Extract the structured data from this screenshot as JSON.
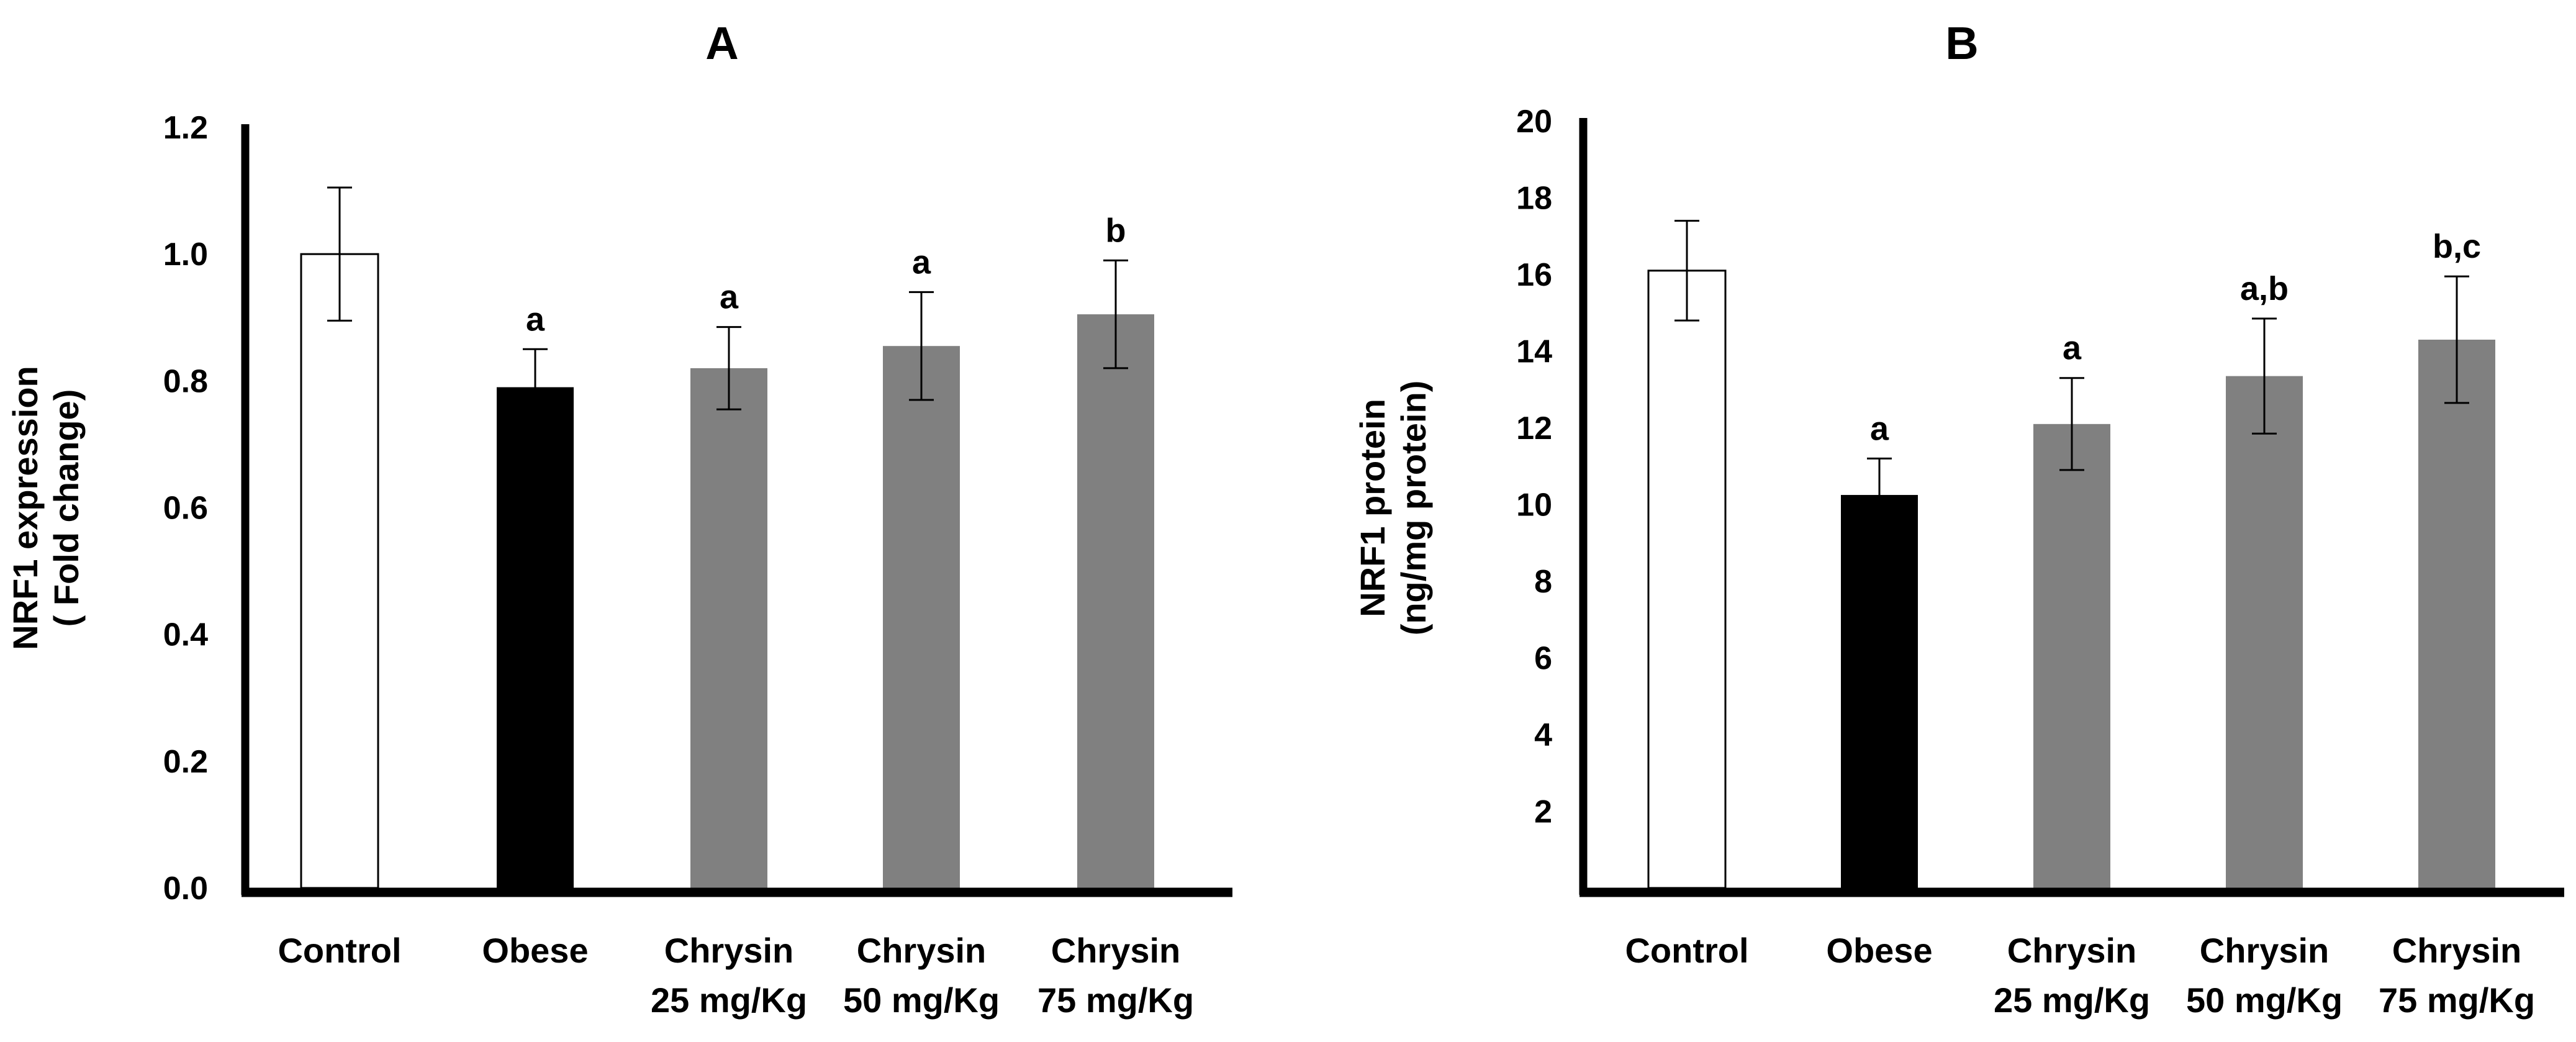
{
  "chart_data": [
    {
      "panel": "A",
      "type": "bar",
      "title": "A",
      "ylabel_lines": [
        "NRF1 expression",
        "( Fold change)"
      ],
      "ylim": [
        0,
        1.2
      ],
      "yticks": [
        0.0,
        0.2,
        0.4,
        0.6,
        0.8,
        1.0,
        1.2
      ],
      "ytick_labels": [
        "0.0",
        "0.2",
        "0.4",
        "0.6",
        "0.8",
        "1.0",
        "1.2"
      ],
      "categories": [
        [
          "Control"
        ],
        [
          "Obese"
        ],
        [
          "Chrysin",
          "25 mg/Kg"
        ],
        [
          "Chrysin",
          "50 mg/Kg"
        ],
        [
          "Chrysin",
          "75 mg/Kg"
        ]
      ],
      "values": [
        1.0,
        0.79,
        0.82,
        0.855,
        0.905
      ],
      "errors": [
        0.105,
        0.06,
        0.065,
        0.085,
        0.085
      ],
      "annotations": [
        "",
        "a",
        "a",
        "a",
        "b"
      ],
      "bar_colors": [
        "#ffffff",
        "#000000",
        "#808080",
        "#808080",
        "#808080"
      ]
    },
    {
      "panel": "B",
      "type": "bar",
      "title": "B",
      "ylabel_lines": [
        "NRF1 protein",
        "(ng/mg protein)"
      ],
      "ylim": [
        0,
        20
      ],
      "yticks": [
        2,
        4,
        6,
        8,
        10,
        12,
        14,
        16,
        18,
        20
      ],
      "ytick_labels": [
        "2",
        "4",
        "6",
        "8",
        "10",
        "12",
        "14",
        "16",
        "18",
        "20"
      ],
      "categories": [
        [
          "Control"
        ],
        [
          "Obese"
        ],
        [
          "Chrysin",
          "25 mg/Kg"
        ],
        [
          "Chrysin",
          "50 mg/Kg"
        ],
        [
          "Chrysin",
          "75 mg/Kg"
        ]
      ],
      "values": [
        16.1,
        10.25,
        12.1,
        13.35,
        14.3
      ],
      "errors": [
        1.3,
        0.95,
        1.2,
        1.5,
        1.65
      ],
      "annotations": [
        "",
        "a",
        "a",
        "a,b",
        "b,c"
      ],
      "bar_colors": [
        "#ffffff",
        "#000000",
        "#808080",
        "#808080",
        "#808080"
      ]
    }
  ]
}
